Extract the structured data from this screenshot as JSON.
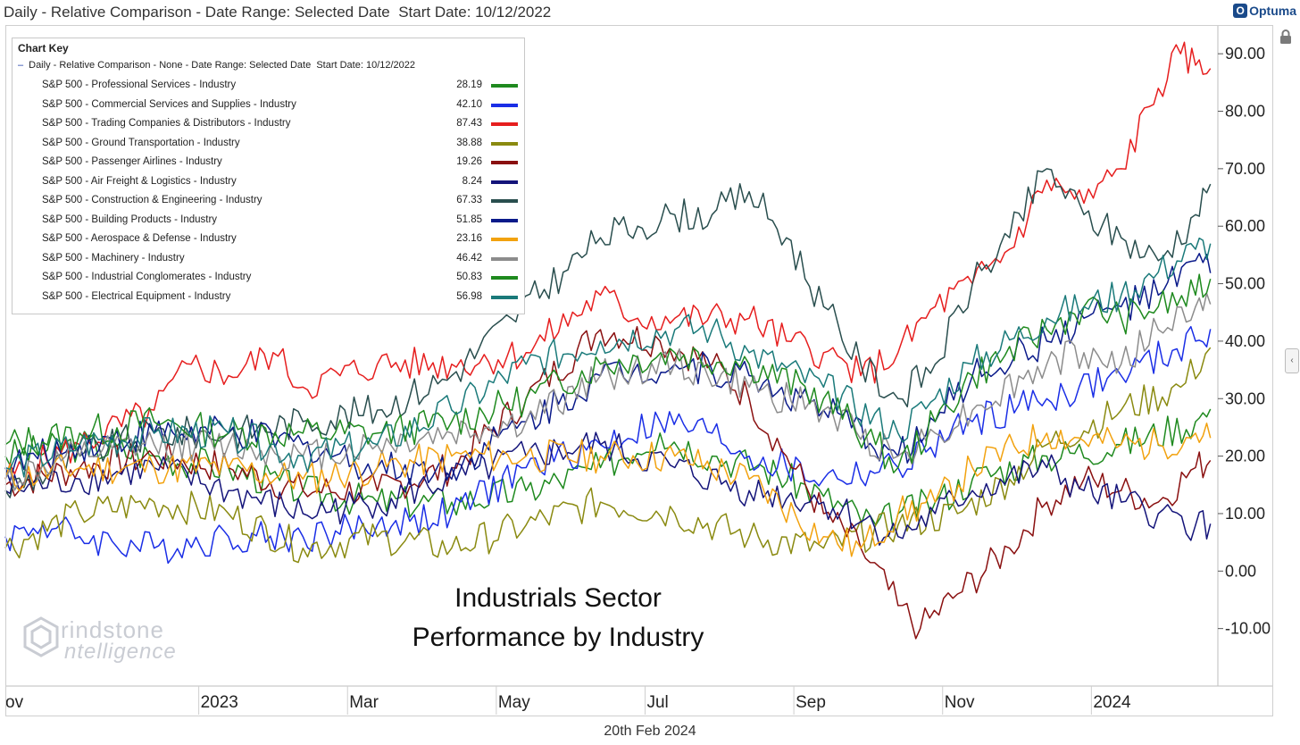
{
  "header": {
    "title": "Daily - Relative Comparison - Date Range: Selected Date  Start Date: 10/12/2022",
    "brand": "Optuma",
    "brand_glyph": "O"
  },
  "legend": {
    "title": "Chart Key",
    "header": "Daily - Relative Comparison - None - Date Range: Selected Date  Start Date: 10/12/2022",
    "dash": "–"
  },
  "annotation": {
    "line1": "Industrials Sector",
    "line2": "Performance by Industry"
  },
  "watermark": {
    "line1": "rindstone",
    "line2": "ntelligence"
  },
  "footer": {
    "date": "20th Feb 2024"
  },
  "side_toggle": "‹",
  "chart_data": {
    "type": "line",
    "title": "Industrials Sector Performance by Industry",
    "x_start": "2022-10-12",
    "x_end": "2024-02-20",
    "x_tick_labels": [
      "ov",
      "2023",
      "Mar",
      "May",
      "Jul",
      "Sep",
      "Nov",
      "2024"
    ],
    "x_tick_positions_months": [
      0.6,
      2.6,
      4.6,
      6.6,
      8.6,
      10.6,
      12.6,
      14.6
    ],
    "x_range_months": [
      0.0,
      16.3
    ],
    "ylim": [
      -20,
      95
    ],
    "y_ticks": [
      -10,
      0,
      10,
      20,
      30,
      40,
      50,
      60,
      70,
      80,
      90
    ],
    "y_tick_labels": [
      "-10.00",
      "0.00",
      "10.00",
      "20.00",
      "30.00",
      "40.00",
      "50.00",
      "60.00",
      "70.00",
      "80.00",
      "90.00"
    ],
    "ylabel": "",
    "xlabel": "",
    "grid": false,
    "legend_position": "top-left",
    "series": [
      {
        "name": "S&P 500 - Professional Services - Industry",
        "value_label": "28.19",
        "color": "#1f8a1f",
        "points": [
          [
            0,
            20
          ],
          [
            1,
            22
          ],
          [
            2,
            20
          ],
          [
            3,
            18
          ],
          [
            4,
            14
          ],
          [
            5,
            12
          ],
          [
            6,
            12
          ],
          [
            7,
            14
          ],
          [
            8,
            18
          ],
          [
            8.8,
            24
          ],
          [
            9.5,
            20
          ],
          [
            10.2,
            18
          ],
          [
            11,
            13
          ],
          [
            11.7,
            8
          ],
          [
            12,
            10
          ],
          [
            12.5,
            12
          ],
          [
            13,
            16
          ],
          [
            14,
            20
          ],
          [
            15,
            22
          ],
          [
            16,
            26
          ],
          [
            16.2,
            28.19
          ]
        ]
      },
      {
        "name": "S&P 500 - Commercial Services and Supplies - Industry",
        "value_label": "42.10",
        "color": "#1a2ee6",
        "points": [
          [
            0,
            6
          ],
          [
            0.5,
            8
          ],
          [
            1,
            6
          ],
          [
            2,
            4
          ],
          [
            3,
            6
          ],
          [
            4,
            6
          ],
          [
            5,
            8
          ],
          [
            6,
            10
          ],
          [
            7,
            18
          ],
          [
            8,
            22
          ],
          [
            8.8,
            26
          ],
          [
            9.5,
            24
          ],
          [
            10,
            20
          ],
          [
            11,
            16
          ],
          [
            12,
            18
          ],
          [
            13,
            26
          ],
          [
            14,
            30
          ],
          [
            15,
            34
          ],
          [
            16,
            40
          ],
          [
            16.2,
            42.1
          ]
        ]
      },
      {
        "name": "S&P 500 - Trading Companies & Distributors - Industry",
        "value_label": "87.43",
        "color": "#e61e1e",
        "points": [
          [
            0,
            16
          ],
          [
            1,
            22
          ],
          [
            2,
            28
          ],
          [
            2.5,
            36
          ],
          [
            3,
            34
          ],
          [
            3.6,
            38
          ],
          [
            4,
            32
          ],
          [
            5,
            36
          ],
          [
            6,
            36
          ],
          [
            7,
            38
          ],
          [
            8,
            48
          ],
          [
            8.5,
            44
          ],
          [
            9,
            44
          ],
          [
            10,
            44
          ],
          [
            10.5,
            40
          ],
          [
            11,
            38
          ],
          [
            11.5,
            34
          ],
          [
            12,
            38
          ],
          [
            12.5,
            46
          ],
          [
            13,
            50
          ],
          [
            13.5,
            56
          ],
          [
            14,
            68
          ],
          [
            14.5,
            64
          ],
          [
            15,
            70
          ],
          [
            15.5,
            84
          ],
          [
            15.8,
            90
          ],
          [
            16,
            88
          ],
          [
            16.2,
            87.43
          ]
        ]
      },
      {
        "name": "S&P 500 - Ground Transportation - Industry",
        "value_label": "38.88",
        "color": "#8a8a10",
        "points": [
          [
            0,
            4
          ],
          [
            1,
            10
          ],
          [
            2,
            12
          ],
          [
            3,
            10
          ],
          [
            4,
            4
          ],
          [
            5,
            6
          ],
          [
            6,
            4
          ],
          [
            7,
            8
          ],
          [
            8,
            12
          ],
          [
            9,
            10
          ],
          [
            10,
            6
          ],
          [
            11,
            4
          ],
          [
            12,
            8
          ],
          [
            12.8,
            10
          ],
          [
            13.5,
            16
          ],
          [
            14,
            22
          ],
          [
            15,
            28
          ],
          [
            15.8,
            32
          ],
          [
            16.2,
            38.88
          ]
        ]
      },
      {
        "name": "S&P 500 - Passenger Airlines - Industry",
        "value_label": "19.26",
        "color": "#8a1010",
        "points": [
          [
            0,
            15
          ],
          [
            1,
            18
          ],
          [
            2,
            20
          ],
          [
            3,
            18
          ],
          [
            4,
            14
          ],
          [
            5,
            14
          ],
          [
            6,
            18
          ],
          [
            7,
            30
          ],
          [
            8,
            42
          ],
          [
            8.8,
            40
          ],
          [
            9.5,
            36
          ],
          [
            10,
            30
          ],
          [
            10.5,
            20
          ],
          [
            11,
            10
          ],
          [
            11.5,
            4
          ],
          [
            12,
            -6
          ],
          [
            12.3,
            -10
          ],
          [
            12.8,
            -4
          ],
          [
            13.5,
            4
          ],
          [
            14,
            12
          ],
          [
            14.5,
            16
          ],
          [
            15,
            14
          ],
          [
            15.5,
            12
          ],
          [
            16,
            18
          ],
          [
            16.2,
            19.26
          ]
        ]
      },
      {
        "name": "S&P 500 - Air Freight & Logistics - Industry",
        "value_label": "8.24",
        "color": "#14147a",
        "points": [
          [
            0,
            14
          ],
          [
            1,
            16
          ],
          [
            2,
            18
          ],
          [
            3,
            14
          ],
          [
            4,
            10
          ],
          [
            5,
            12
          ],
          [
            6,
            16
          ],
          [
            7,
            20
          ],
          [
            8,
            22
          ],
          [
            9,
            18
          ],
          [
            10,
            14
          ],
          [
            11,
            12
          ],
          [
            12,
            6
          ],
          [
            12.5,
            10
          ],
          [
            13,
            14
          ],
          [
            14,
            18
          ],
          [
            14.5,
            14
          ],
          [
            15,
            12
          ],
          [
            15.5,
            10
          ],
          [
            16,
            8
          ],
          [
            16.2,
            8.24
          ]
        ]
      },
      {
        "name": "S&P 500 - Construction & Engineering - Industry",
        "value_label": "67.33",
        "color": "#294e4e",
        "points": [
          [
            0,
            14
          ],
          [
            1,
            20
          ],
          [
            2,
            24
          ],
          [
            3,
            24
          ],
          [
            4,
            26
          ],
          [
            5,
            28
          ],
          [
            6,
            34
          ],
          [
            6.8,
            44
          ],
          [
            7.5,
            52
          ],
          [
            8,
            58
          ],
          [
            8.5,
            60
          ],
          [
            9,
            62
          ],
          [
            9.5,
            62
          ],
          [
            10,
            66
          ],
          [
            10.5,
            58
          ],
          [
            11,
            46
          ],
          [
            11.5,
            36
          ],
          [
            12,
            30
          ],
          [
            12.5,
            36
          ],
          [
            13,
            50
          ],
          [
            13.5,
            58
          ],
          [
            14,
            70
          ],
          [
            14.5,
            62
          ],
          [
            15,
            58
          ],
          [
            15.5,
            54
          ],
          [
            16,
            62
          ],
          [
            16.2,
            67.33
          ]
        ]
      },
      {
        "name": "S&P 500 - Building Products - Industry",
        "value_label": "51.85",
        "color": "#0a1a8a",
        "points": [
          [
            0,
            18
          ],
          [
            1,
            22
          ],
          [
            2,
            24
          ],
          [
            3,
            24
          ],
          [
            4,
            22
          ],
          [
            5,
            18
          ],
          [
            6,
            18
          ],
          [
            7,
            26
          ],
          [
            8,
            34
          ],
          [
            9,
            36
          ],
          [
            10,
            34
          ],
          [
            11,
            28
          ],
          [
            12,
            20
          ],
          [
            12.5,
            26
          ],
          [
            13,
            34
          ],
          [
            14,
            40
          ],
          [
            14.5,
            44
          ],
          [
            15,
            46
          ],
          [
            15.5,
            48
          ],
          [
            16,
            54
          ],
          [
            16.2,
            51.85
          ]
        ]
      },
      {
        "name": "S&P 500 - Aerospace & Defense - Industry",
        "value_label": "23.16",
        "color": "#f2a20f",
        "points": [
          [
            0,
            16
          ],
          [
            1,
            18
          ],
          [
            2,
            18
          ],
          [
            3,
            18
          ],
          [
            4,
            16
          ],
          [
            5,
            18
          ],
          [
            6,
            20
          ],
          [
            7,
            20
          ],
          [
            8,
            20
          ],
          [
            9,
            20
          ],
          [
            10,
            16
          ],
          [
            11,
            6
          ],
          [
            11.5,
            4
          ],
          [
            12,
            10
          ],
          [
            12.5,
            12
          ],
          [
            13,
            18
          ],
          [
            14,
            24
          ],
          [
            15,
            22
          ],
          [
            15.5,
            22
          ],
          [
            16,
            24
          ],
          [
            16.2,
            23.16
          ]
        ]
      },
      {
        "name": "S&P 500 - Machinery - Industry",
        "value_label": "46.42",
        "color": "#8c8c8c",
        "points": [
          [
            0,
            16
          ],
          [
            1,
            20
          ],
          [
            2,
            22
          ],
          [
            3,
            22
          ],
          [
            4,
            20
          ],
          [
            5,
            22
          ],
          [
            6,
            24
          ],
          [
            7,
            26
          ],
          [
            8,
            34
          ],
          [
            9,
            36
          ],
          [
            10,
            32
          ],
          [
            11,
            28
          ],
          [
            12,
            20
          ],
          [
            12.5,
            24
          ],
          [
            13,
            28
          ],
          [
            14,
            36
          ],
          [
            14.5,
            38
          ],
          [
            15,
            36
          ],
          [
            15.5,
            42
          ],
          [
            16,
            46
          ],
          [
            16.2,
            46.42
          ]
        ]
      },
      {
        "name": "S&P 500 - Industrial Conglomerates - Industry",
        "value_label": "50.83",
        "color": "#1f8a1f",
        "points": [
          [
            0,
            22
          ],
          [
            1,
            24
          ],
          [
            2,
            26
          ],
          [
            3,
            24
          ],
          [
            4,
            24
          ],
          [
            5,
            24
          ],
          [
            6,
            26
          ],
          [
            7,
            30
          ],
          [
            8,
            36
          ],
          [
            9,
            38
          ],
          [
            10,
            36
          ],
          [
            11,
            30
          ],
          [
            11.7,
            22
          ],
          [
            12,
            18
          ],
          [
            12.5,
            26
          ],
          [
            13,
            34
          ],
          [
            14,
            42
          ],
          [
            14.5,
            46
          ],
          [
            15,
            44
          ],
          [
            15.5,
            46
          ],
          [
            16,
            48
          ],
          [
            16.2,
            50.83
          ]
        ]
      },
      {
        "name": "S&P 500 - Electrical Equipment - Industry",
        "value_label": "56.98",
        "color": "#1a7a7a",
        "points": [
          [
            0,
            18
          ],
          [
            1,
            22
          ],
          [
            2,
            24
          ],
          [
            3,
            24
          ],
          [
            4,
            20
          ],
          [
            5,
            22
          ],
          [
            6,
            28
          ],
          [
            7,
            36
          ],
          [
            8,
            40
          ],
          [
            9,
            42
          ],
          [
            9.5,
            42
          ],
          [
            10,
            38
          ],
          [
            11,
            32
          ],
          [
            12,
            24
          ],
          [
            12.5,
            30
          ],
          [
            13,
            36
          ],
          [
            14,
            44
          ],
          [
            14.5,
            46
          ],
          [
            15,
            48
          ],
          [
            15.5,
            52
          ],
          [
            16,
            56
          ],
          [
            16.2,
            56.98
          ]
        ]
      }
    ]
  }
}
